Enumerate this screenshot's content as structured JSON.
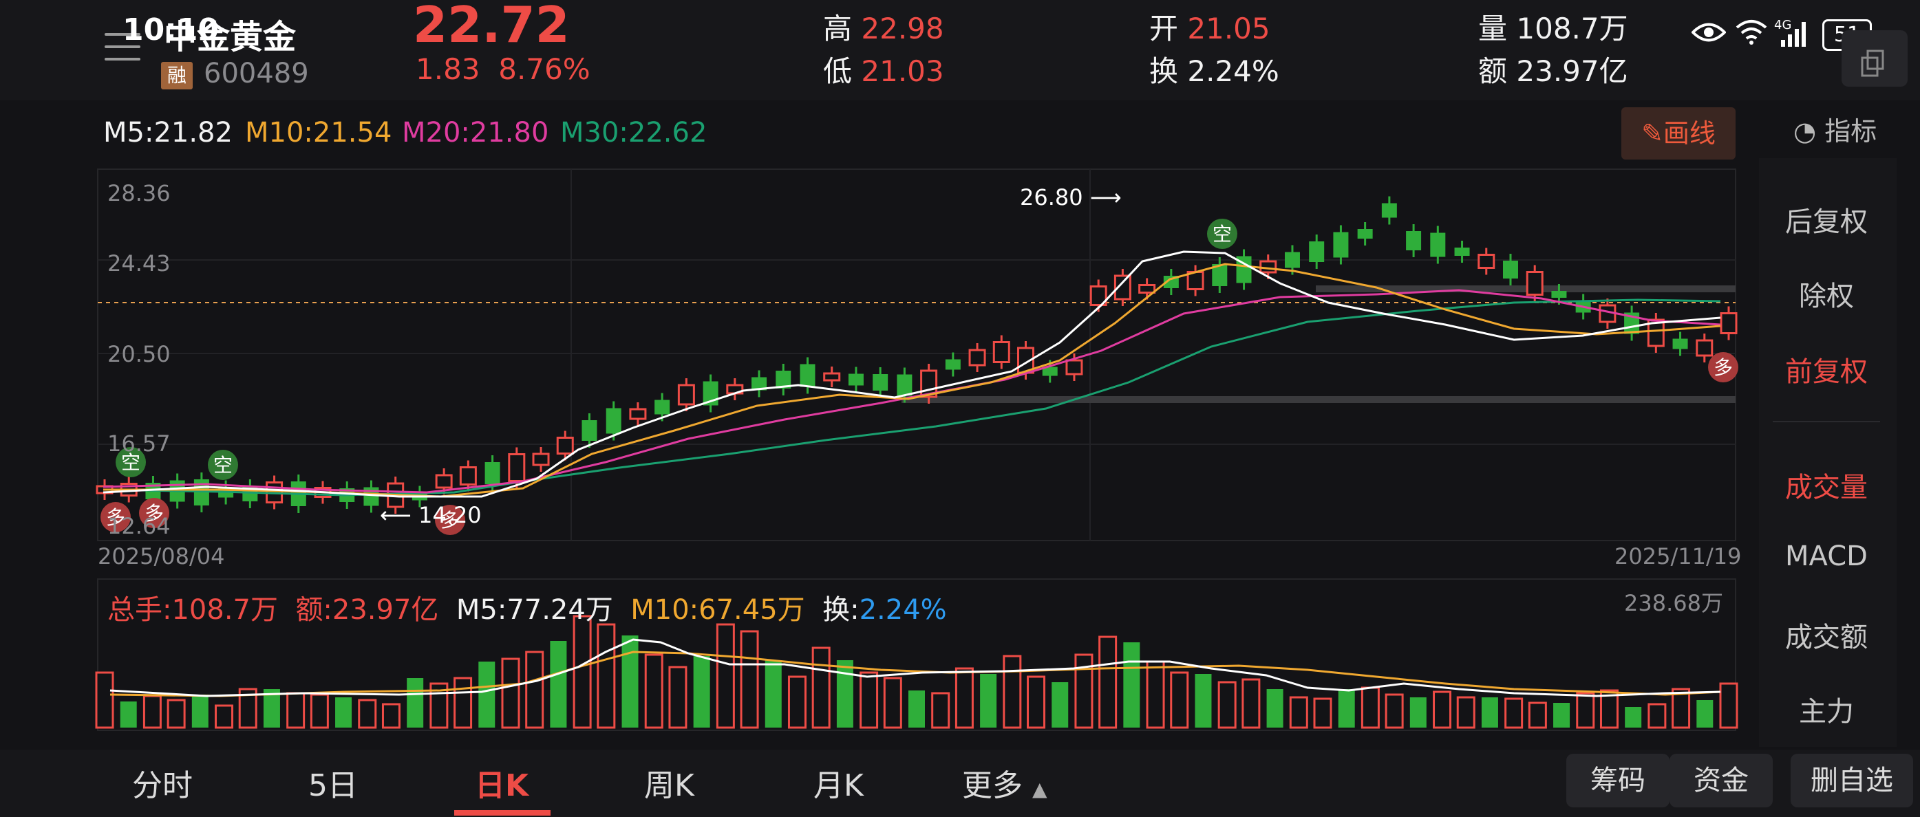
{
  "status": {
    "time": "10:10",
    "battery": "51",
    "signal_label": "4G"
  },
  "stock": {
    "name": "中金黄金",
    "rong": "融",
    "code": "600489",
    "price": "22.72",
    "change": "1.83",
    "change_pct": "8.76%",
    "high_label": "高",
    "high": "22.98",
    "low_label": "低",
    "low": "21.03",
    "open_label": "开",
    "open": "21.05",
    "turnover_label": "换",
    "turnover": "2.24%",
    "volume_label": "量",
    "volume": "108.7万",
    "amount_label": "额",
    "amount": "23.97亿"
  },
  "ma": {
    "m5": "M5:21.82",
    "m10": "M10:21.54",
    "m20": "M20:21.80",
    "m30": "M30:22.62"
  },
  "toolbar": {
    "draw_label": "画线",
    "indicator_label": "指标"
  },
  "right_panel": {
    "items": [
      "后复权",
      "除权",
      "前复权",
      "成交量",
      "MACD",
      "成交额",
      "主力"
    ],
    "active": [
      "前复权",
      "成交量"
    ]
  },
  "chart": {
    "y_ticks": [
      "28.36",
      "24.43",
      "20.50",
      "16.57",
      "12.64"
    ],
    "start_date": "2025/08/04",
    "end_date": "2025/11/19",
    "high_marker": "26.80",
    "low_marker": "14.20",
    "signal_bear": "空",
    "signal_bull": "多"
  },
  "volume_panel": {
    "total": "总手:108.7万",
    "amount": "额:23.97亿",
    "m5": "M5:77.24万",
    "m10": "M10:67.45万",
    "turnover_label": "换:",
    "turnover": "2.24%",
    "max": "238.68万"
  },
  "tabs": [
    "分时",
    "5日",
    "日K",
    "周K",
    "月K",
    "更多"
  ],
  "active_tab": "日K",
  "bottom_buttons": [
    "筹码",
    "资金",
    "删自选"
  ],
  "colors": {
    "up": "#ee4c46",
    "down": "#2fae3a",
    "m5": "#ffffff",
    "m10": "#f0a830",
    "m20": "#e03ca0",
    "m30": "#1aa070",
    "accent": "#ee5a3c",
    "blue": "#2e9bf0"
  }
}
